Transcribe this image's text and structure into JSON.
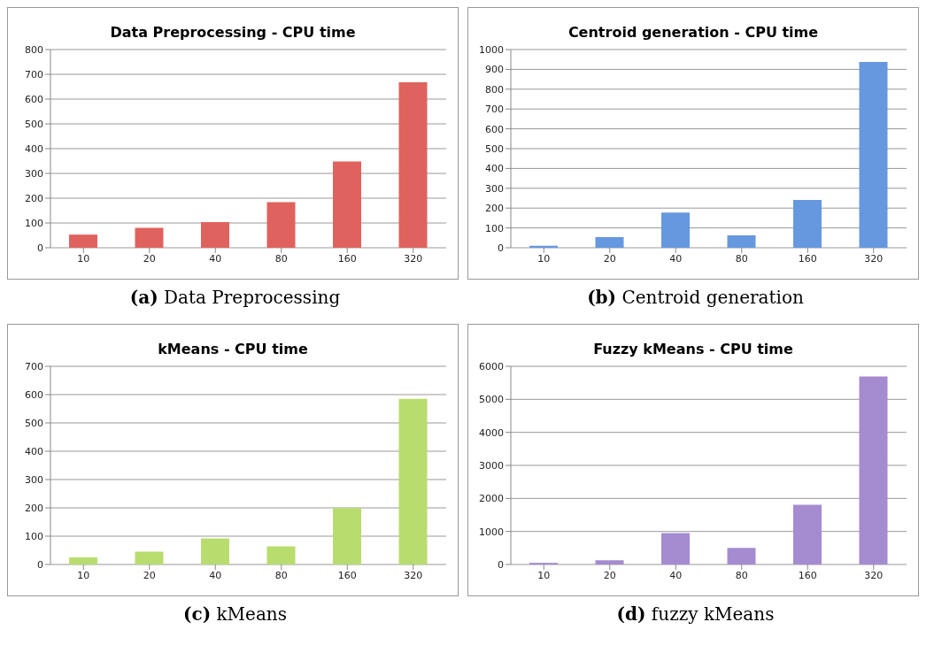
{
  "chart_data": [
    {
      "type": "bar",
      "title": "Data Preprocessing - CPU time",
      "categories": [
        "10",
        "20",
        "40",
        "80",
        "160",
        "320"
      ],
      "values": [
        53,
        80,
        104,
        184,
        348,
        668
      ],
      "color": "#e0625e",
      "ylim": [
        0,
        800
      ],
      "yticks": [
        0,
        100,
        200,
        300,
        400,
        500,
        600,
        700,
        800
      ],
      "grid": "y",
      "annotations": [
        "(a) Data Preprocessing"
      ]
    },
    {
      "type": "bar",
      "title": "Centroid generation - CPU time",
      "categories": [
        "10",
        "20",
        "40",
        "80",
        "160",
        "320"
      ],
      "values": [
        10,
        54,
        178,
        63,
        241,
        937
      ],
      "color": "#6598df",
      "ylim": [
        0,
        1000
      ],
      "yticks": [
        0,
        100,
        200,
        300,
        400,
        500,
        600,
        700,
        800,
        900,
        1000
      ],
      "grid": "y",
      "annotations": [
        "(b) Centroid generation"
      ]
    },
    {
      "type": "bar",
      "title": "kMeans - CPU time",
      "categories": [
        "10",
        "20",
        "40",
        "80",
        "160",
        "320"
      ],
      "values": [
        25,
        45,
        92,
        64,
        199,
        585
      ],
      "color": "#b8dd6e",
      "ylim": [
        0,
        700
      ],
      "yticks": [
        0,
        100,
        200,
        300,
        400,
        500,
        600,
        700
      ],
      "grid": "y",
      "annotations": [
        "(c) kMeans"
      ]
    },
    {
      "type": "bar",
      "title": "Fuzzy kMeans - CPU time",
      "categories": [
        "10",
        "20",
        "40",
        "80",
        "160",
        "320"
      ],
      "values": [
        50,
        130,
        950,
        500,
        1810,
        5690
      ],
      "color": "#a58bd0",
      "ylim": [
        0,
        6000
      ],
      "yticks": [
        0,
        1000,
        2000,
        3000,
        4000,
        5000,
        6000
      ],
      "grid": "y",
      "annotations": [
        "(d) fuzzy kMeans"
      ]
    }
  ]
}
